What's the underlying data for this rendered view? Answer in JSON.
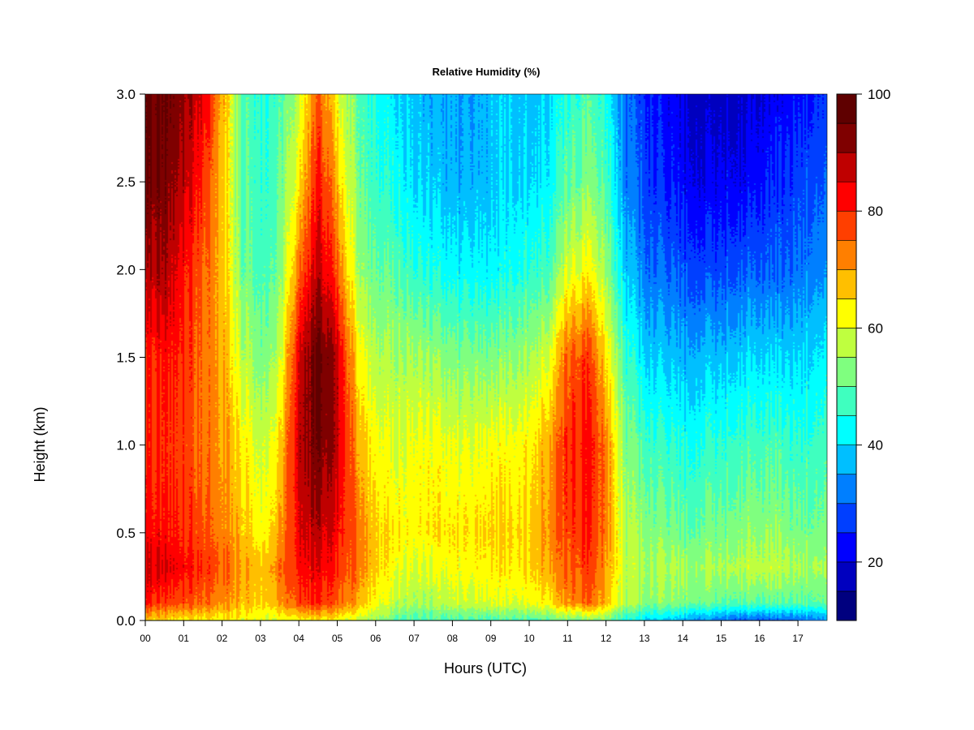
{
  "chart_data": {
    "type": "heatmap",
    "title": "Relative Humidity (%)",
    "xlabel": "Hours (UTC)",
    "ylabel": "Height (km)",
    "xlim": [
      0,
      17.7
    ],
    "ylim": [
      0.0,
      3.0
    ],
    "x_ticks": [
      "00",
      "01",
      "02",
      "03",
      "04",
      "05",
      "06",
      "07",
      "08",
      "09",
      "10",
      "11",
      "12",
      "13",
      "14",
      "15",
      "16",
      "17"
    ],
    "y_ticks": [
      "0.0",
      "0.5",
      "1.0",
      "1.5",
      "2.0",
      "2.5",
      "3.0"
    ],
    "colorbar": {
      "range": [
        10,
        100
      ],
      "step": 5,
      "ticks": [
        "20",
        "40",
        "60",
        "80",
        "100"
      ],
      "colors": [
        "#00007f",
        "#0000bf",
        "#0000ff",
        "#003fff",
        "#007fff",
        "#00bfff",
        "#00ffff",
        "#3fffbf",
        "#7fff7f",
        "#bfff3f",
        "#ffff00",
        "#ffbf00",
        "#ff7f00",
        "#ff3f00",
        "#ff0000",
        "#bf0000",
        "#7f0000",
        "#5f0000"
      ]
    },
    "heights_km": [
      0.0,
      0.1,
      0.3,
      0.5,
      1.0,
      1.5,
      2.0,
      2.5,
      3.0
    ],
    "hours": [
      0.0,
      0.5,
      1.0,
      1.5,
      2.0,
      2.5,
      3.0,
      3.5,
      4.0,
      4.5,
      5.0,
      5.5,
      6.0,
      6.5,
      7.0,
      7.5,
      8.0,
      8.5,
      9.0,
      9.5,
      10.0,
      10.5,
      11.0,
      11.5,
      12.0,
      12.5,
      13.0,
      13.5,
      14.0,
      14.5,
      15.0,
      15.5,
      16.0,
      16.5,
      17.0,
      17.7
    ],
    "values": [
      [
        66,
        82,
        86,
        83,
        80,
        80,
        88,
        95,
        97
      ],
      [
        65,
        78,
        86,
        82,
        80,
        82,
        90,
        94,
        96
      ],
      [
        64,
        77,
        83,
        80,
        78,
        80,
        82,
        88,
        92
      ],
      [
        64,
        75,
        80,
        77,
        74,
        74,
        76,
        80,
        85
      ],
      [
        63,
        72,
        76,
        73,
        71,
        70,
        68,
        68,
        70
      ],
      [
        62,
        68,
        70,
        68,
        64,
        58,
        52,
        50,
        49
      ],
      [
        60,
        66,
        67,
        62,
        58,
        52,
        48,
        46,
        45
      ],
      [
        60,
        70,
        74,
        70,
        65,
        58,
        52,
        50,
        48
      ],
      [
        62,
        78,
        82,
        85,
        88,
        86,
        74,
        64,
        58
      ],
      [
        63,
        80,
        84,
        88,
        95,
        97,
        88,
        82,
        76
      ],
      [
        62,
        76,
        80,
        83,
        88,
        88,
        76,
        68,
        62
      ],
      [
        58,
        70,
        74,
        74,
        70,
        64,
        56,
        52,
        50
      ],
      [
        54,
        62,
        66,
        66,
        62,
        56,
        50,
        46,
        44
      ],
      [
        50,
        58,
        62,
        64,
        60,
        56,
        50,
        44,
        41
      ],
      [
        48,
        56,
        60,
        63,
        62,
        56,
        46,
        40,
        38
      ],
      [
        48,
        56,
        60,
        64,
        62,
        54,
        44,
        38,
        36
      ],
      [
        48,
        58,
        62,
        64,
        60,
        52,
        42,
        36,
        35
      ],
      [
        48,
        58,
        62,
        64,
        60,
        52,
        42,
        36,
        35
      ],
      [
        48,
        60,
        64,
        66,
        62,
        52,
        42,
        38,
        38
      ],
      [
        49,
        60,
        64,
        66,
        62,
        54,
        44,
        40,
        39
      ],
      [
        49,
        62,
        66,
        66,
        64,
        56,
        46,
        40,
        38
      ],
      [
        50,
        64,
        70,
        72,
        70,
        60,
        48,
        42,
        40
      ],
      [
        51,
        72,
        76,
        78,
        80,
        76,
        60,
        50,
        46
      ],
      [
        52,
        74,
        78,
        80,
        82,
        78,
        62,
        52,
        48
      ],
      [
        52,
        68,
        70,
        72,
        72,
        64,
        54,
        48,
        44
      ],
      [
        44,
        56,
        58,
        56,
        52,
        46,
        38,
        32,
        30
      ],
      [
        40,
        54,
        56,
        54,
        48,
        40,
        32,
        28,
        26
      ],
      [
        38,
        53,
        56,
        52,
        46,
        38,
        30,
        24,
        22
      ],
      [
        36,
        52,
        55,
        50,
        44,
        36,
        28,
        22,
        20
      ],
      [
        34,
        52,
        56,
        52,
        46,
        38,
        28,
        21,
        18
      ],
      [
        32,
        50,
        56,
        52,
        46,
        38,
        28,
        22,
        18
      ],
      [
        30,
        50,
        58,
        54,
        48,
        40,
        30,
        22,
        19
      ],
      [
        29,
        50,
        58,
        54,
        48,
        40,
        30,
        24,
        20
      ],
      [
        30,
        50,
        58,
        54,
        48,
        40,
        30,
        26,
        22
      ],
      [
        31,
        50,
        56,
        52,
        46,
        40,
        32,
        28,
        24
      ],
      [
        34,
        50,
        56,
        52,
        48,
        42,
        34,
        30,
        26
      ]
    ]
  }
}
